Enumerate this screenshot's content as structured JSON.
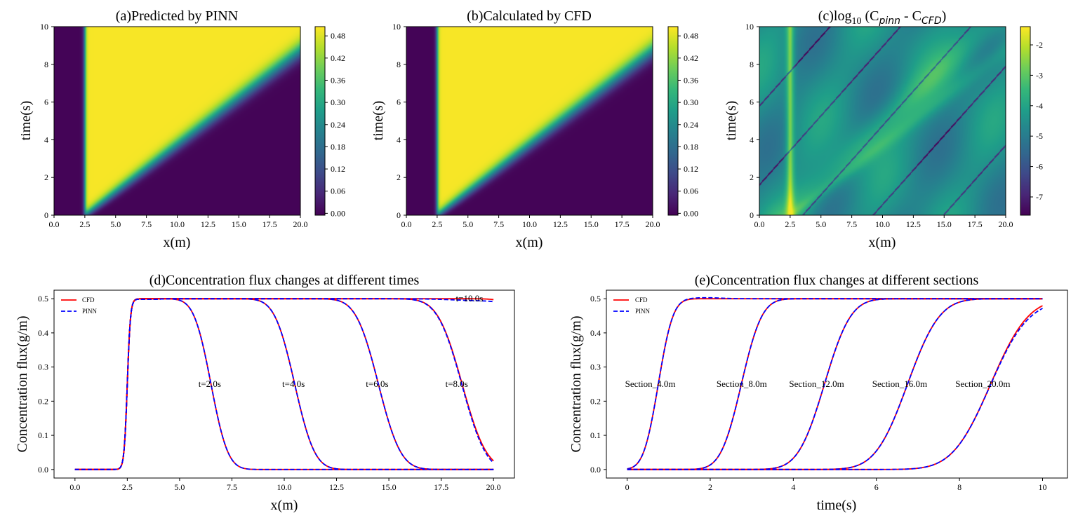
{
  "colors": {
    "viridis": [
      "#440154",
      "#482777",
      "#3e4a89",
      "#31688e",
      "#26828e",
      "#1f9e89",
      "#35b779",
      "#6dcd59",
      "#b4de2c",
      "#fde725"
    ],
    "cfd": "#ff0000",
    "pinn": "#0000ff"
  },
  "chart_data": [
    {
      "type": "heatmap",
      "title": "(a)Predicted by PINN",
      "xlabel": "x(m)",
      "ylabel": "time(s)",
      "xlim": [
        0,
        20
      ],
      "ylim": [
        0,
        10
      ],
      "xticks": [
        "0.0",
        "2.5",
        "5.0",
        "7.5",
        "10.0",
        "12.5",
        "15.0",
        "17.5",
        "20.0"
      ],
      "yticks": [
        "0",
        "2",
        "4",
        "6",
        "8",
        "10"
      ],
      "colorbar": {
        "min": -0.005,
        "max": 0.505,
        "ticks": [
          "0.00",
          "0.06",
          "0.12",
          "0.18",
          "0.24",
          "0.30",
          "0.36",
          "0.42",
          "0.48"
        ]
      },
      "field": {
        "model": "step_band",
        "source_x": 2.5,
        "front_speed": 2.0,
        "value_low": 0.0,
        "value_high": 0.5
      }
    },
    {
      "type": "heatmap",
      "title": "(b)Calculated by CFD",
      "xlabel": "x(m)",
      "ylabel": "time(s)",
      "xlim": [
        0,
        20
      ],
      "ylim": [
        0,
        10
      ],
      "xticks": [
        "0.0",
        "2.5",
        "5.0",
        "7.5",
        "10.0",
        "12.5",
        "15.0",
        "17.5",
        "20.0"
      ],
      "yticks": [
        "0",
        "2",
        "4",
        "6",
        "8",
        "10"
      ],
      "colorbar": {
        "min": -0.005,
        "max": 0.505,
        "ticks": [
          "0.00",
          "0.06",
          "0.12",
          "0.18",
          "0.24",
          "0.30",
          "0.36",
          "0.42",
          "0.48"
        ]
      },
      "field": {
        "model": "step_band",
        "source_x": 2.5,
        "front_speed": 2.0,
        "value_low": 0.0,
        "value_high": 0.5
      }
    },
    {
      "type": "heatmap",
      "title_prefix": "(c)log",
      "title_sub": "10",
      "title_rest": " (C",
      "title_sub2": "pinn",
      "title_mid": " - C",
      "title_sub3": "CFD",
      "title_end": ")",
      "xlabel": "x(m)",
      "ylabel": "time(s)",
      "xlim": [
        0,
        20
      ],
      "ylim": [
        0,
        10
      ],
      "xticks": [
        "0.0",
        "2.5",
        "5.0",
        "7.5",
        "10.0",
        "12.5",
        "15.0",
        "17.5",
        "20.0"
      ],
      "yticks": [
        "0",
        "2",
        "4",
        "6",
        "8",
        "10"
      ],
      "colorbar": {
        "min": -7.6,
        "max": -1.4,
        "ticks": [
          "-2",
          "-3",
          "-4",
          "-5",
          "-6",
          "-7"
        ]
      },
      "field": {
        "model": "log_error",
        "source_x": 2.5,
        "front_speed": 2.0
      }
    },
    {
      "type": "line",
      "title": "(d)Concentration flux changes at different times",
      "xlabel": "x(m)",
      "ylabel": "Concentration flux(g/m)",
      "xlim": [
        -1,
        21
      ],
      "ylim": [
        -0.025,
        0.525
      ],
      "xticks": [
        0.0,
        2.5,
        5.0,
        7.5,
        10.0,
        12.5,
        15.0,
        17.5,
        20.0
      ],
      "xtick_labels": [
        "0.0",
        "2.5",
        "5.0",
        "7.5",
        "10.0",
        "12.5",
        "15.0",
        "17.5",
        "20.0"
      ],
      "yticks": [
        0.0,
        0.1,
        0.2,
        0.3,
        0.4,
        0.5
      ],
      "ytick_labels": [
        "0.0",
        "0.1",
        "0.2",
        "0.3",
        "0.4",
        "0.5"
      ],
      "legend": {
        "placement": "top-left",
        "entries": [
          "CFD",
          "PINN"
        ]
      },
      "rise_x": 2.5,
      "series": [
        {
          "t": 2.0,
          "front_x": 6.5
        },
        {
          "t": 4.0,
          "front_x": 10.5
        },
        {
          "t": 6.0,
          "front_x": 14.5
        },
        {
          "t": 8.0,
          "front_x": 18.5
        },
        {
          "t": 10.0,
          "front_x": 22.5
        }
      ],
      "annotations": [
        {
          "text": "t=2.0s",
          "x": 5.9,
          "y": 0.25
        },
        {
          "text": "t=4.0s",
          "x": 9.9,
          "y": 0.25
        },
        {
          "text": "t=6.0s",
          "x": 13.9,
          "y": 0.25
        },
        {
          "text": "t=8.0s",
          "x": 17.7,
          "y": 0.25
        },
        {
          "text": "t=10.0s",
          "x": 18.2,
          "y": 0.5
        }
      ]
    },
    {
      "type": "line",
      "title": "(e)Concentration flux changes at different sections",
      "xlabel": "time(s)",
      "ylabel": "Concentration flux(g/m)",
      "xlim": [
        -0.5,
        10.6
      ],
      "ylim": [
        -0.025,
        0.525
      ],
      "xticks": [
        0,
        2,
        4,
        6,
        8,
        10
      ],
      "xtick_labels": [
        "0",
        "2",
        "4",
        "6",
        "8",
        "10"
      ],
      "yticks": [
        0.0,
        0.1,
        0.2,
        0.3,
        0.4,
        0.5
      ],
      "ytick_labels": [
        "0.0",
        "0.1",
        "0.2",
        "0.3",
        "0.4",
        "0.5"
      ],
      "legend": {
        "placement": "top-left",
        "entries": [
          "CFD",
          "PINN"
        ]
      },
      "series": [
        {
          "section": 4.0,
          "arrival_t": 0.75
        },
        {
          "section": 8.0,
          "arrival_t": 2.75
        },
        {
          "section": 12.0,
          "arrival_t": 4.75
        },
        {
          "section": 16.0,
          "arrival_t": 6.75
        },
        {
          "section": 20.0,
          "arrival_t": 8.75
        }
      ],
      "annotations": [
        {
          "text": "Section_4.0m",
          "x": -0.05,
          "y": 0.25
        },
        {
          "text": "Section_8.0m",
          "x": 2.15,
          "y": 0.25
        },
        {
          "text": "Section_12.0m",
          "x": 3.9,
          "y": 0.25
        },
        {
          "text": "Section_16.0m",
          "x": 5.9,
          "y": 0.25
        },
        {
          "text": "Section_20.0m",
          "x": 7.9,
          "y": 0.25
        }
      ]
    }
  ]
}
